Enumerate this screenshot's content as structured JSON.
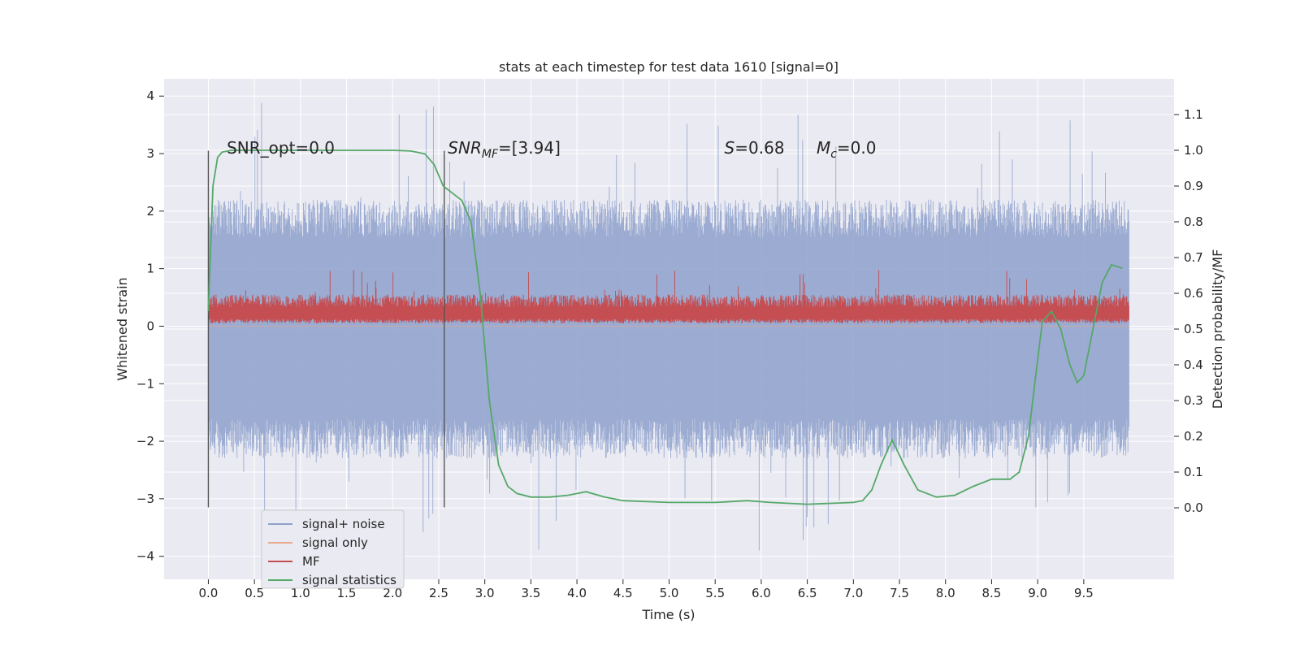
{
  "chart_data": {
    "type": "line",
    "title": "stats at each timestep for test data 1610 [signal=0]",
    "xlabel": "Time (s)",
    "ylabel": "Whitened strain",
    "ylabel_right": "Detection probability/MF",
    "xlim": [
      -0.48,
      10.48
    ],
    "ylim": [
      -4.4,
      4.3
    ],
    "ylim_right": [
      -0.2,
      1.2
    ],
    "xticks": [
      "0.0",
      "0.5",
      "1.0",
      "1.5",
      "2.0",
      "2.5",
      "3.0",
      "3.5",
      "4.0",
      "4.5",
      "5.0",
      "5.5",
      "6.0",
      "6.5",
      "7.0",
      "7.5",
      "8.0",
      "8.5",
      "9.0",
      "9.5"
    ],
    "yticks": [
      "−4",
      "−3",
      "−2",
      "−1",
      "0",
      "1",
      "2",
      "3",
      "4"
    ],
    "yticks_right": [
      "0.0",
      "0.1",
      "0.2",
      "0.3",
      "0.4",
      "0.5",
      "0.6",
      "0.7",
      "0.8",
      "0.9",
      "1.0",
      "1.1"
    ],
    "grid": true,
    "legend_position": "lower-left",
    "annotations": [
      {
        "text": "SNR_opt=0.0",
        "x": 0.2,
        "y": 3.0
      },
      {
        "text_main": "SNR",
        "text_sub": "MF",
        "text_tail": "=[3.94]",
        "x": 2.6,
        "y": 3.0
      },
      {
        "text_main": "S",
        "text_tail": "=0.68",
        "x": 5.6,
        "y": 3.0
      },
      {
        "text_main": "M",
        "text_sub": "c",
        "text_tail": "=0.0",
        "x": 6.6,
        "y": 3.0
      }
    ],
    "vlines": [
      {
        "x": 0.0,
        "y_range": [
          -3.15,
          3.05
        ]
      },
      {
        "x": 2.56,
        "y_range": [
          -3.15,
          3.05
        ]
      }
    ],
    "series": [
      {
        "name": "signal+ noise",
        "color": "#8da0cb",
        "axis": "left",
        "x_range": [
          0.0,
          9.99
        ],
        "envelope": {
          "typical_low": -2.3,
          "typical_high": 2.2,
          "extreme_low": -4.0,
          "extreme_high": 3.9
        }
      },
      {
        "name": "signal only",
        "color": "#e9a88a",
        "axis": "left",
        "x_range": [
          0.0,
          9.99
        ],
        "values": "≈0 throughout"
      },
      {
        "name": "MF",
        "color": "#c44e52",
        "axis": "left",
        "x_range": [
          0.0,
          9.99
        ],
        "envelope": {
          "typical_low": 0.05,
          "typical_high": 0.55,
          "extreme_low": 0.0,
          "extreme_high": 1.0
        }
      },
      {
        "name": "signal statistics",
        "color": "#55a868",
        "axis": "right",
        "x": [
          0.0,
          0.05,
          0.1,
          0.15,
          0.25,
          0.5,
          1.0,
          1.5,
          2.0,
          2.2,
          2.35,
          2.45,
          2.55,
          2.65,
          2.75,
          2.85,
          2.95,
          3.05,
          3.15,
          3.25,
          3.35,
          3.5,
          3.7,
          3.9,
          4.1,
          4.3,
          4.5,
          5.0,
          5.5,
          5.85,
          6.1,
          6.5,
          7.0,
          7.1,
          7.2,
          7.3,
          7.42,
          7.55,
          7.7,
          7.9,
          8.1,
          8.3,
          8.5,
          8.7,
          8.8,
          8.9,
          8.97,
          9.05,
          9.15,
          9.25,
          9.35,
          9.43,
          9.5,
          9.6,
          9.7,
          9.8,
          9.92
        ],
        "values": [
          0.55,
          0.9,
          0.98,
          0.995,
          1.0,
          1.0,
          1.0,
          1.0,
          1.0,
          0.998,
          0.99,
          0.96,
          0.9,
          0.88,
          0.86,
          0.8,
          0.6,
          0.3,
          0.12,
          0.06,
          0.04,
          0.03,
          0.03,
          0.035,
          0.045,
          0.03,
          0.02,
          0.015,
          0.015,
          0.02,
          0.015,
          0.01,
          0.015,
          0.02,
          0.05,
          0.12,
          0.19,
          0.12,
          0.05,
          0.03,
          0.035,
          0.06,
          0.08,
          0.08,
          0.1,
          0.2,
          0.35,
          0.52,
          0.55,
          0.5,
          0.4,
          0.35,
          0.37,
          0.5,
          0.63,
          0.68,
          0.67
        ]
      }
    ]
  }
}
